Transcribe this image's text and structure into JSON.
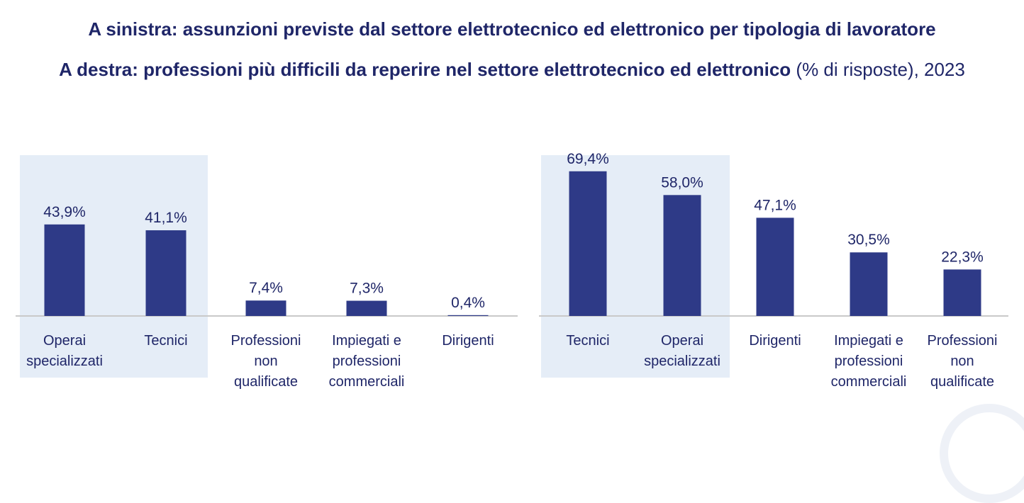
{
  "header": {
    "title_line1": "A sinistra: assunzioni previste dal settore elettrotecnico ed elettronico per tipologia di lavoratore",
    "title_line2_bold": "A destra: professioni più difficili da reperire nel settore elettrotecnico ed elettronico",
    "title_line2_normal": " (% di risposte), 2023"
  },
  "colors": {
    "bar": "#2e3a87",
    "highlight": "#e5edf7",
    "text": "#1f2668"
  },
  "chart_data": [
    {
      "type": "bar",
      "title": "Assunzioni previste per tipologia di lavoratore",
      "unit": "%",
      "categories": [
        [
          "Operai",
          "specializzati"
        ],
        [
          "Tecnici"
        ],
        [
          "Professioni",
          "non",
          "qualificate"
        ],
        [
          "Impiegati e",
          "professioni",
          "commerciali"
        ],
        [
          "Dirigenti"
        ]
      ],
      "values": [
        43.9,
        41.1,
        7.4,
        7.3,
        0.4
      ],
      "labels": [
        "43,9%",
        "41,1%",
        "7,4%",
        "7,3%",
        "0,4%"
      ],
      "highlighted": [
        0,
        1
      ],
      "ylim": [
        0,
        70
      ]
    },
    {
      "type": "bar",
      "title": "Professioni più difficili da reperire",
      "unit": "%",
      "categories": [
        [
          "Tecnici"
        ],
        [
          "Operai",
          "specializzati"
        ],
        [
          "Dirigenti"
        ],
        [
          "Impiegati e",
          "professioni",
          "commerciali"
        ],
        [
          "Professioni",
          "non",
          "qualificate"
        ]
      ],
      "values": [
        69.4,
        58.0,
        47.1,
        30.5,
        22.3
      ],
      "labels": [
        "69,4%",
        "58,0%",
        "47,1%",
        "30,5%",
        "22,3%"
      ],
      "highlighted": [
        0,
        1
      ],
      "ylim": [
        0,
        70
      ]
    }
  ]
}
